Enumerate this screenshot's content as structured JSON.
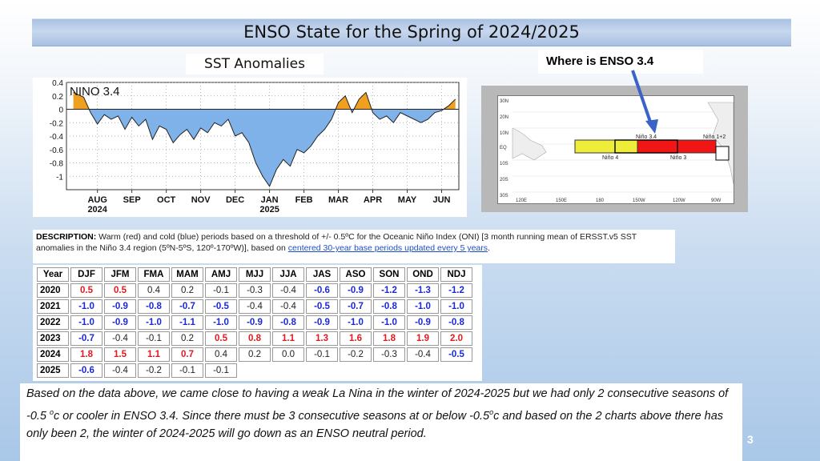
{
  "slide": {
    "title": "ENSO State for the Spring of 2024/2025",
    "page_number": "3"
  },
  "sst_label": "SST Anomalies",
  "where_label": "Where is ENSO 3.4",
  "chart_data": {
    "type": "area",
    "title": "NINO 3.4",
    "xlabel": "",
    "ylabel": "",
    "ylim": [
      -1.2,
      0.4
    ],
    "yticks": [
      "0.4",
      "0.2",
      "0",
      "-0.2",
      "-0.4",
      "-0.6",
      "-0.8",
      "-1"
    ],
    "xticks": [
      "AUG",
      "SEP",
      "OCT",
      "NOV",
      "DEC",
      "JAN",
      "FEB",
      "MAR",
      "APR",
      "MAY",
      "JUN"
    ],
    "xtick_years": [
      "2024",
      "",
      "",
      "",
      "",
      "2025",
      "",
      "",
      "",
      "",
      ""
    ],
    "x_months": [
      -0.2,
      0.1,
      0.3,
      0.5,
      0.7,
      0.9,
      1.1,
      1.3,
      1.5,
      1.7,
      1.9,
      2.1,
      2.3,
      2.5,
      2.7,
      2.9,
      3.1,
      3.3,
      3.5,
      3.7,
      3.9,
      4.1,
      4.3,
      4.5,
      4.7,
      4.9,
      5.1,
      5.3,
      5.5,
      5.7,
      5.9,
      6.1,
      6.3,
      6.5,
      6.7,
      6.9,
      7.1,
      7.3,
      7.5,
      7.7,
      7.9,
      8.1,
      8.3,
      8.5,
      8.7,
      8.9,
      9.1,
      9.3,
      9.5,
      9.7,
      9.9,
      10.1,
      10.3,
      10.5,
      10.7,
      10.9
    ],
    "values": [
      0.25,
      0.18,
      -0.05,
      -0.22,
      -0.08,
      -0.15,
      -0.1,
      -0.3,
      -0.12,
      -0.25,
      -0.15,
      -0.45,
      -0.25,
      -0.3,
      -0.5,
      -0.38,
      -0.3,
      -0.45,
      -0.28,
      -0.35,
      -0.2,
      -0.25,
      -0.15,
      -0.4,
      -0.35,
      -0.5,
      -0.8,
      -1.0,
      -1.15,
      -0.9,
      -0.75,
      -0.85,
      -0.6,
      -0.65,
      -0.55,
      -0.4,
      -0.3,
      -0.15,
      0.1,
      0.2,
      -0.05,
      0.15,
      0.25,
      -0.05,
      -0.15,
      -0.1,
      -0.2,
      -0.05,
      -0.1,
      -0.15,
      -0.2,
      -0.15,
      -0.05,
      -0.02,
      0.05,
      0.15
    ],
    "warm_color": "#f0a020",
    "cold_color": "#7fb2e8"
  },
  "map": {
    "lat_labels": [
      "30N",
      "20N",
      "10N",
      "EQ",
      "10S",
      "20S",
      "30S"
    ],
    "lon_labels": [
      "120E",
      "150E",
      "180",
      "150W",
      "120W",
      "90W"
    ],
    "regions": {
      "nino4": "Niño 4",
      "nino34": "Niño 3.4",
      "nino3": "Niño 3",
      "nino12": "Niño 1+2"
    },
    "colors": {
      "nino4": "#eded3a",
      "nino3": "#f01616",
      "arrow": "#3a63c8"
    }
  },
  "description": {
    "label": "DESCRIPTION:",
    "text": " Warm (red) and cold (blue) periods based on a threshold of +/- 0.5ºC for the Oceanic Niño Index (ONI) [3 month running mean of ERSST.v5 SST anomalies in the Niño 3.4 region (5ºN-5ºS, 120º-170ºW)], based on ",
    "link": "centered 30-year base periods updated every 5 years",
    "end": "."
  },
  "oni_table": {
    "headers": [
      "Year",
      "DJF",
      "JFM",
      "FMA",
      "MAM",
      "AMJ",
      "MJJ",
      "JJA",
      "JAS",
      "ASO",
      "SON",
      "OND",
      "NDJ"
    ],
    "rows": [
      {
        "year": "2020",
        "values": [
          "0.5",
          "0.5",
          "0.4",
          "0.2",
          "-0.1",
          "-0.3",
          "-0.4",
          "-0.6",
          "-0.9",
          "-1.2",
          "-1.3",
          "-1.2"
        ]
      },
      {
        "year": "2021",
        "values": [
          "-1.0",
          "-0.9",
          "-0.8",
          "-0.7",
          "-0.5",
          "-0.4",
          "-0.4",
          "-0.5",
          "-0.7",
          "-0.8",
          "-1.0",
          "-1.0"
        ]
      },
      {
        "year": "2022",
        "values": [
          "-1.0",
          "-0.9",
          "-1.0",
          "-1.1",
          "-1.0",
          "-0.9",
          "-0.8",
          "-0.9",
          "-1.0",
          "-1.0",
          "-0.9",
          "-0.8"
        ]
      },
      {
        "year": "2023",
        "values": [
          "-0.7",
          "-0.4",
          "-0.1",
          "0.2",
          "0.5",
          "0.8",
          "1.1",
          "1.3",
          "1.6",
          "1.8",
          "1.9",
          "2.0"
        ]
      },
      {
        "year": "2024",
        "values": [
          "1.8",
          "1.5",
          "1.1",
          "0.7",
          "0.4",
          "0.2",
          "0.0",
          "-0.1",
          "-0.2",
          "-0.3",
          "-0.4",
          "-0.5"
        ]
      },
      {
        "year": "2025",
        "values": [
          "-0.6",
          "-0.4",
          "-0.2",
          "-0.1",
          "-0.1"
        ]
      }
    ],
    "colors": {
      "warm": "#e0191e",
      "cold": "#1a29d6",
      "neutral": "#222222"
    }
  },
  "note": {
    "line1": "Based on the data above, we came close to having a weak La Nina in the winter of 2024-2025 but we had only 2 consecutive seasons of -0.5 ",
    "deg1": "o",
    "unit1": "c or cooler in ENSO 3.4.  Since there must be 3 consecutive seasons at or below -0.5",
    "deg2": "o",
    "unit2": "c and based on the 2 charts above there has only been 2, the winter of 2024-2025 will go down as an ENSO neutral period."
  }
}
